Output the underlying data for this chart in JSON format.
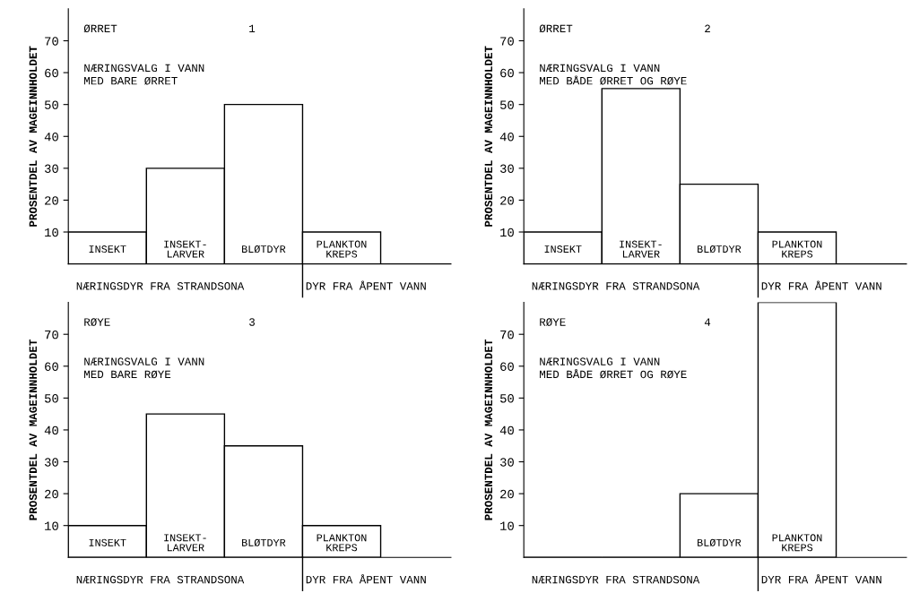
{
  "chart_data": [
    {
      "type": "bar",
      "ylabel": "PROSENTDEL AV MAGEINNHOLDET",
      "categories": [
        "INSEKT",
        "INSEKT-\nLARVER",
        "BLØTDYR",
        "PLANKTON\nKREPS"
      ],
      "values": [
        10,
        30,
        50,
        10
      ],
      "color": "#ffffff",
      "ylim": [
        0,
        80
      ],
      "yticks": [
        10,
        20,
        30,
        40,
        50,
        60,
        70
      ],
      "grid": false,
      "legend": false,
      "annotations": [
        "ØRRET",
        "1",
        "NÆRINGSVALG I VANN\nMED BARE ØRRET",
        "NÆRINGSDYR FRA STRANDSONA",
        "DYR FRA ÅPENT VANN"
      ]
    },
    {
      "type": "bar",
      "ylabel": "PROSENTDEL AV MAGEINNHOLDET",
      "categories": [
        "INSEKT",
        "INSEKT-\nLARVER",
        "BLØTDYR",
        "PLANKTON\nKREPS"
      ],
      "values": [
        10,
        55,
        25,
        10
      ],
      "color": "#ffffff",
      "ylim": [
        0,
        80
      ],
      "yticks": [
        10,
        20,
        30,
        40,
        50,
        60,
        70
      ],
      "grid": false,
      "legend": false,
      "annotations": [
        "ØRRET",
        "2",
        "NÆRINGSVALG I VANN\nMED BÅDE ØRRET OG RØYE",
        "NÆRINGSDYR FRA STRANDSONA",
        "DYR FRA ÅPENT VANN"
      ]
    },
    {
      "type": "bar",
      "ylabel": "PROSENTDEL AV MAGEINNHOLDET",
      "categories": [
        "INSEKT",
        "INSEKT-\nLARVER",
        "BLØTDYR",
        "PLANKTON\nKREPS"
      ],
      "values": [
        10,
        45,
        35,
        10
      ],
      "color": "#ffffff",
      "ylim": [
        0,
        80
      ],
      "yticks": [
        10,
        20,
        30,
        40,
        50,
        60,
        70
      ],
      "grid": false,
      "legend": false,
      "annotations": [
        "RØYE",
        "3",
        "NÆRINGSVALG I VANN\nMED BARE RØYE",
        "NÆRINGSDYR FRA STRANDSONA",
        "DYR FRA ÅPENT VANN"
      ]
    },
    {
      "type": "bar",
      "ylabel": "PROSENTDEL AV MAGEINNHOLDET",
      "categories": [
        null,
        null,
        "BLØTDYR",
        "PLANKTON\nKREPS"
      ],
      "values": [
        0,
        0,
        20,
        80
      ],
      "color": "#ffffff",
      "ylim": [
        0,
        80
      ],
      "yticks": [
        10,
        20,
        30,
        40,
        50,
        60,
        70
      ],
      "grid": false,
      "legend": false,
      "annotations": [
        "RØYE",
        "4",
        "NÆRINGSVALG I VANN\nMED BÅDE ØRRET OG RØYE",
        "NÆRINGSDYR FRA STRANDSONA",
        "DYR FRA ÅPENT VANN"
      ]
    }
  ]
}
